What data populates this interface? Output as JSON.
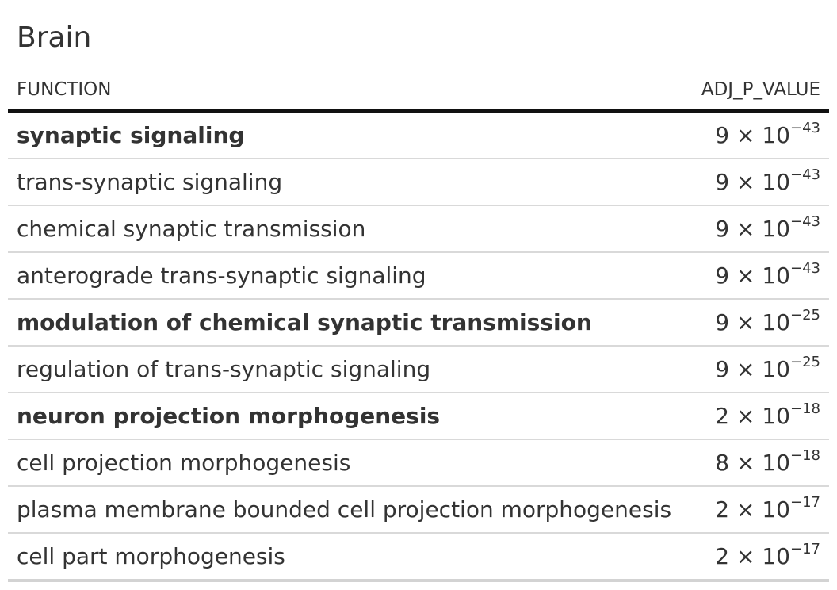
{
  "title": "Brain",
  "columns": {
    "function": "FUNCTION",
    "adj_p_value": "ADJ_P_VALUE"
  },
  "rows": [
    {
      "function": "synaptic signaling",
      "bold": true,
      "mantissa": "9",
      "exponent": "−43"
    },
    {
      "function": "trans-synaptic signaling",
      "bold": false,
      "mantissa": "9",
      "exponent": "−43"
    },
    {
      "function": "chemical synaptic transmission",
      "bold": false,
      "mantissa": "9",
      "exponent": "−43"
    },
    {
      "function": "anterograde trans-synaptic signaling",
      "bold": false,
      "mantissa": "9",
      "exponent": "−43"
    },
    {
      "function": "modulation of chemical synaptic transmission",
      "bold": true,
      "mantissa": "9",
      "exponent": "−25"
    },
    {
      "function": "regulation of trans-synaptic signaling",
      "bold": false,
      "mantissa": "9",
      "exponent": "−25"
    },
    {
      "function": "neuron projection morphogenesis",
      "bold": true,
      "mantissa": "2",
      "exponent": "−18"
    },
    {
      "function": "cell projection morphogenesis",
      "bold": false,
      "mantissa": "8",
      "exponent": "−18"
    },
    {
      "function": "plasma membrane bounded cell projection morphogenesis",
      "bold": false,
      "mantissa": "2",
      "exponent": "−17"
    },
    {
      "function": "cell part morphogenesis",
      "bold": false,
      "mantissa": "2",
      "exponent": "−17"
    }
  ],
  "format": {
    "times": "×",
    "base": "10"
  }
}
